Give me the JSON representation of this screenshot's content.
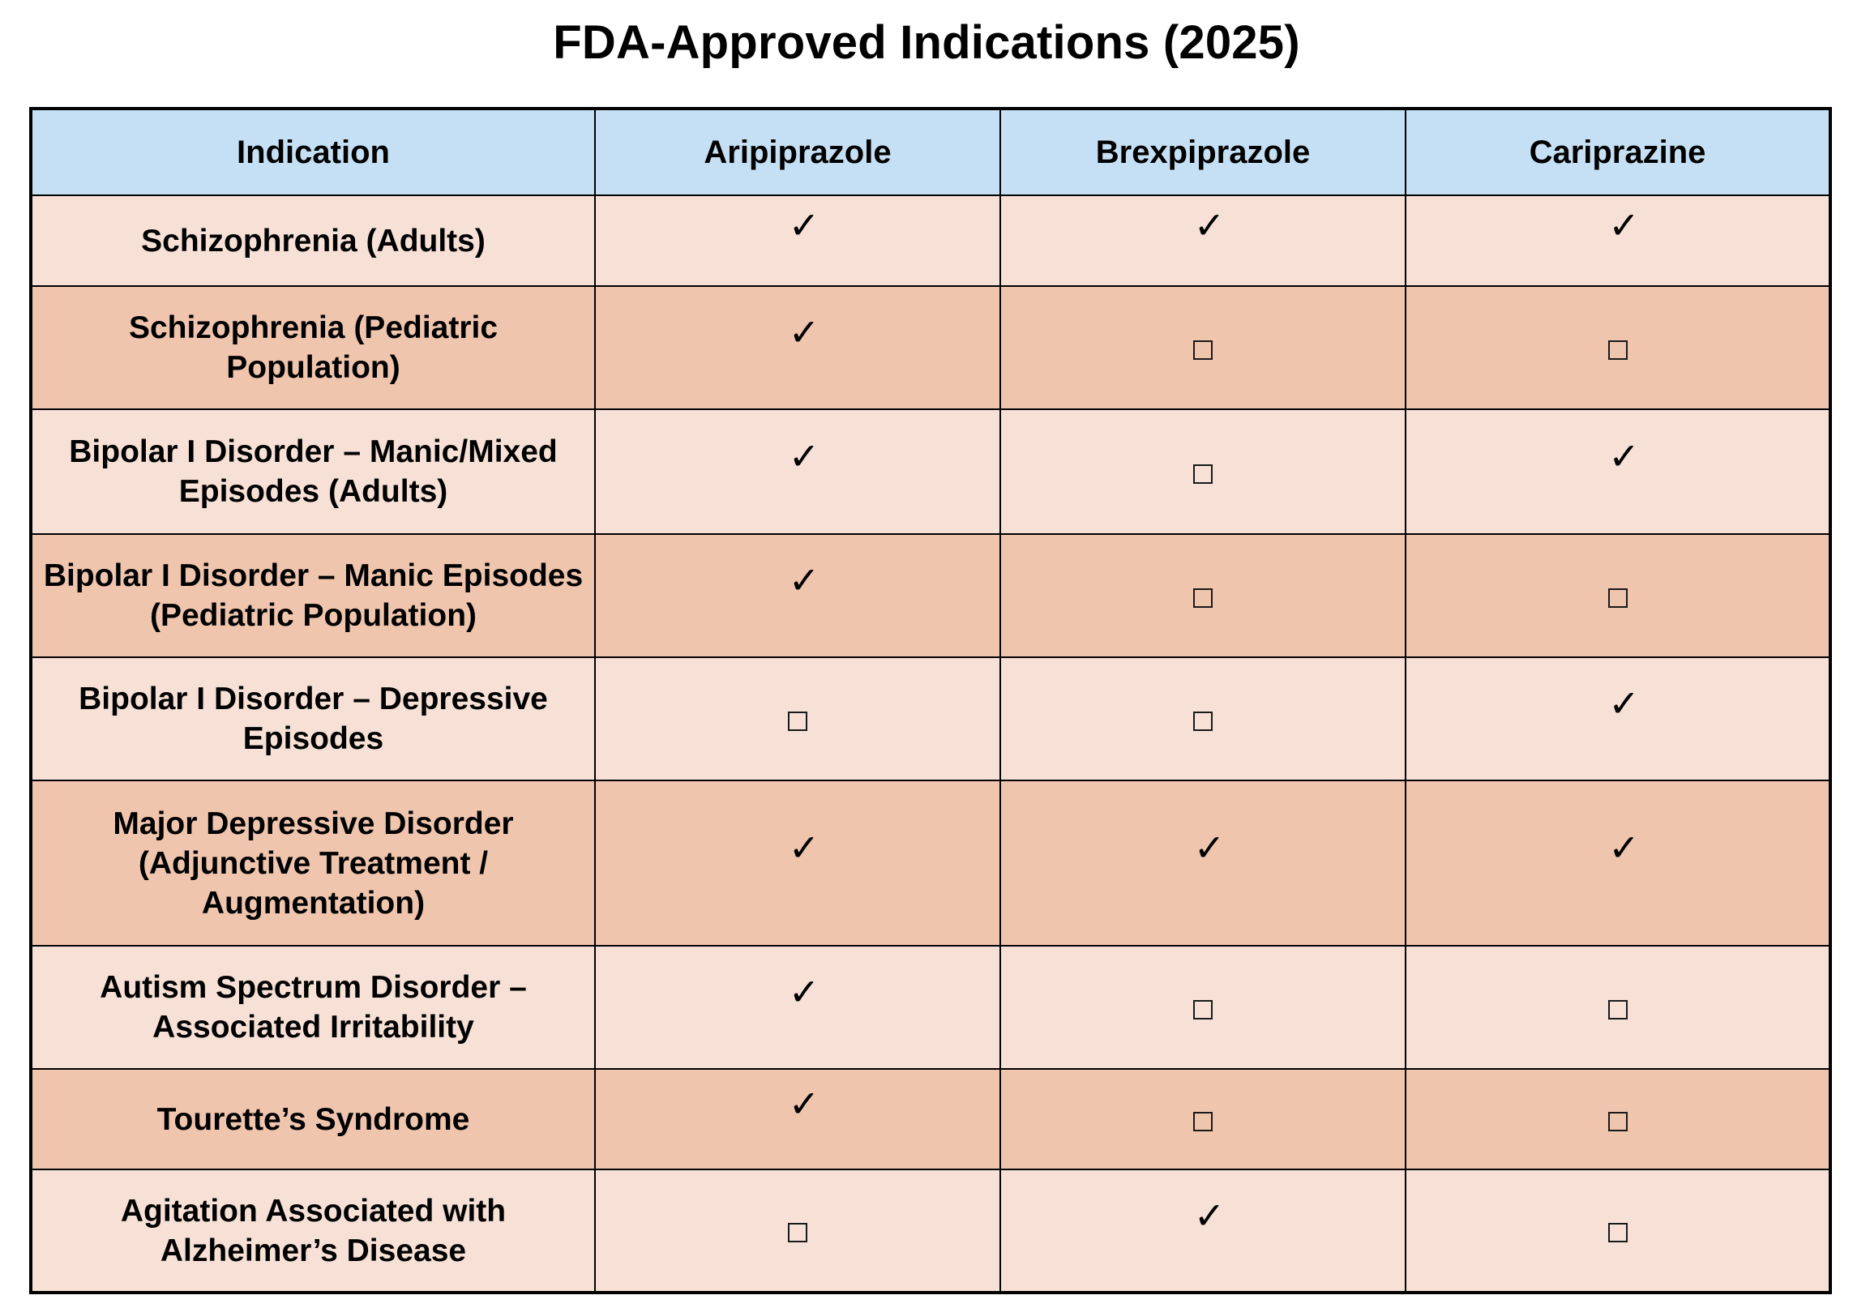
{
  "title": "FDA-Approved Indications (2025)",
  "headers": [
    "Indication",
    "Aripiprazole",
    "Brexpiprazole",
    "Cariprazine"
  ],
  "rows": [
    {
      "indication": "Schizophrenia (Adults)",
      "approved": [
        true,
        true,
        true
      ]
    },
    {
      "indication": "Schizophrenia (Pediatric Population)",
      "approved": [
        true,
        false,
        false
      ]
    },
    {
      "indication": "Bipolar I Disorder – Manic/Mixed Episodes (Adults)",
      "approved": [
        true,
        false,
        true
      ]
    },
    {
      "indication": "Bipolar I Disorder – Manic Episodes (Pediatric Population)",
      "approved": [
        true,
        false,
        false
      ]
    },
    {
      "indication": "Bipolar I Disorder – Depressive Episodes",
      "approved": [
        false,
        false,
        true
      ]
    },
    {
      "indication": "Major Depressive Disorder (Adjunctive Treatment / Augmentation)",
      "approved": [
        true,
        true,
        true
      ]
    },
    {
      "indication": "Autism Spectrum Disorder – Associated Irritability",
      "approved": [
        true,
        false,
        false
      ]
    },
    {
      "indication": "Tourette’s Syndrome",
      "approved": [
        true,
        false,
        false
      ]
    },
    {
      "indication": "Agitation Associated with Alzheimer’s Disease",
      "approved": [
        false,
        true,
        false
      ]
    }
  ],
  "symbols": {
    "approved": "✓",
    "not_approved_icon": "empty-checkbox-icon"
  },
  "colors": {
    "header_bg": "#c5e0f4",
    "row_light": "#f7e1d6",
    "row_dark": "#efc5ae",
    "border": "#000000"
  }
}
